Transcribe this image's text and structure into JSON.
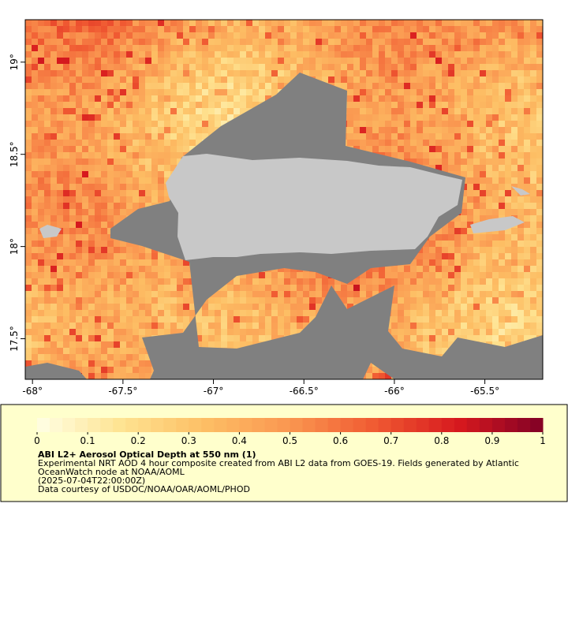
{
  "map": {
    "xlim": [
      -68.04,
      -65.18
    ],
    "ylim": [
      17.28,
      19.23
    ],
    "xticks": [
      {
        "value": -68,
        "label": "-68°"
      },
      {
        "value": -67.5,
        "label": "-67.5°"
      },
      {
        "value": -67,
        "label": "-67°"
      },
      {
        "value": -66.5,
        "label": "-66.5°"
      },
      {
        "value": -66,
        "label": "-66°"
      },
      {
        "value": -65.5,
        "label": "-65.5°"
      }
    ],
    "yticks": [
      {
        "value": 17.5,
        "label": "17.5°"
      },
      {
        "value": 18,
        "label": "18°"
      },
      {
        "value": 18.5,
        "label": "18.5°"
      },
      {
        "value": 19,
        "label": "19°"
      }
    ]
  },
  "colorbar": {
    "lim": [
      0,
      1
    ],
    "ticks": [
      0,
      0.1,
      0.2,
      0.3,
      0.4,
      0.5,
      0.6,
      0.7,
      0.8,
      0.9,
      1
    ]
  },
  "legend": {
    "title": "ABI L2+ Aerosol Optical Depth at 550 nm (1)",
    "lines": [
      "Experimental NRT AOD 4 hour composite created from ABI L2 data from GOES-19. Fields generated by Atlantic",
      "OceanWatch node at NOAA/AOML",
      "(2025-07-04T22:00:00Z)",
      "Data courtesy of USDOC/NOAA/OAR/AOML/PHOD"
    ]
  }
}
